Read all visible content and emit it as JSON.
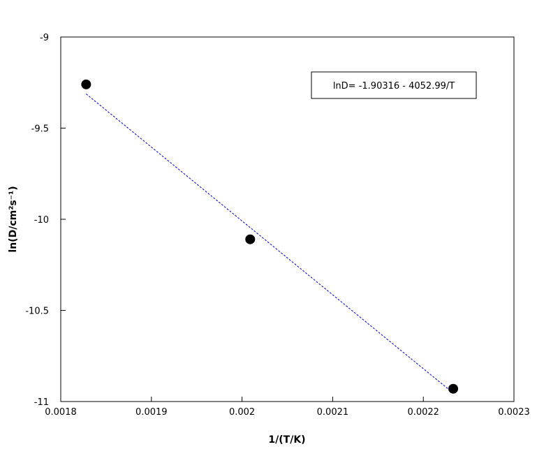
{
  "chart_data": {
    "type": "scatter",
    "xlabel": "1/(T/K)",
    "ylabel": "ln(D/cm²s⁻¹)",
    "xlim": [
      0.0018,
      0.0023
    ],
    "ylim": [
      -11,
      -9
    ],
    "x_ticks": [
      "0.0018",
      "0.0019",
      "0.002",
      "0.0021",
      "0.0022",
      "0.0023"
    ],
    "y_ticks": [
      "-9",
      "-9.5",
      "-10",
      "-10.5",
      "-11"
    ],
    "series": [
      {
        "x": [
          0.001828,
          0.002009,
          0.002233
        ],
        "y": [
          -9.26,
          -10.11,
          -10.93
        ],
        "color": "#000000"
      }
    ],
    "fit_line": {
      "equation": "lnD= -1.90316 - 4052.99/T",
      "intercept": -1.90316,
      "slope": -4052.99,
      "x_range": [
        0.001828,
        0.002233
      ],
      "color": "#0000cc"
    },
    "grid": false,
    "legend_placement": "top-right"
  }
}
